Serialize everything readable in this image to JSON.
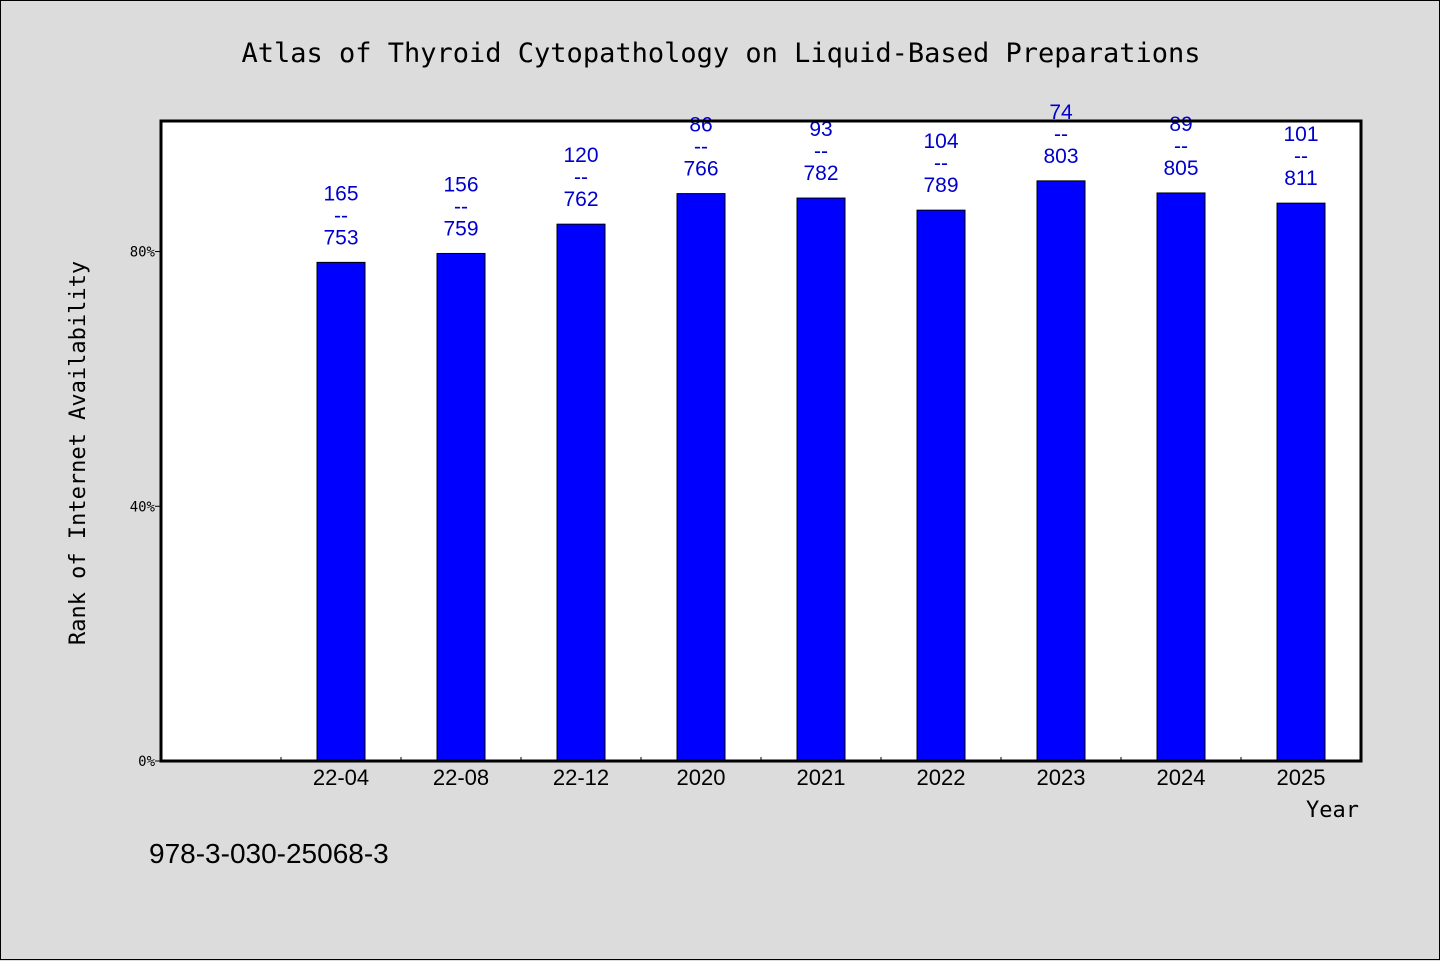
{
  "chart_data": {
    "type": "bar",
    "title": "Atlas of Thyroid Cytopathology on Liquid-Based Preparations",
    "xlabel": "Year",
    "ylabel": "Rank of Internet Availability",
    "categories": [
      "22-04",
      "22-08",
      "22-12",
      "2020",
      "2021",
      "2022",
      "2023",
      "2024",
      "2025"
    ],
    "values": [
      78.3,
      79.7,
      84.3,
      89.1,
      88.4,
      86.5,
      91.1,
      89.2,
      87.6
    ],
    "value_unit": "%",
    "data_labels": [
      [
        "165",
        "--",
        "753"
      ],
      [
        "156",
        "--",
        "759"
      ],
      [
        "120",
        "--",
        "762"
      ],
      [
        "86",
        "--",
        "766"
      ],
      [
        "93",
        "--",
        "782"
      ],
      [
        "104",
        "--",
        "789"
      ],
      [
        "74",
        "--",
        "803"
      ],
      [
        "89",
        "--",
        "805"
      ],
      [
        "101",
        "--",
        "811"
      ]
    ],
    "yticks": [
      {
        "value": 0,
        "label": "0%"
      },
      {
        "value": 40,
        "label": "40%"
      },
      {
        "value": 80,
        "label": "80%"
      }
    ],
    "ylim": [
      0,
      100.5
    ],
    "x_slots": 10,
    "first_category_slot": 1,
    "grid": false,
    "legend": "none",
    "bar_color": "#0000ff",
    "label_color": "#0000cc",
    "plot_background": "#ffffff",
    "page_background": "#dcdcdc"
  },
  "footer": {
    "isbn": "978-3-030-25068-3"
  }
}
